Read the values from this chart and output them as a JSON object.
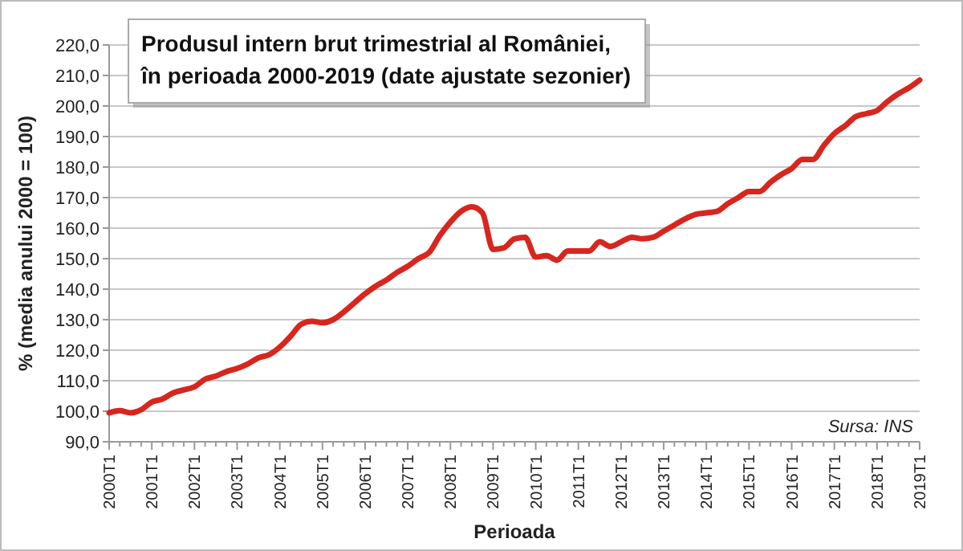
{
  "chart_data": {
    "type": "line",
    "title": "Produsul intern brut trimestrial al României,\nîn perioada 2000-2019 (date ajustate sezonier)",
    "xlabel": "Perioada",
    "ylabel": "% (media anului 2000 = 100)",
    "annotations": [
      "Sursa: INS"
    ],
    "categories": [
      "2000T1",
      null,
      null,
      null,
      "2001T1",
      null,
      null,
      null,
      "2002T1",
      null,
      null,
      null,
      "2003T1",
      null,
      null,
      null,
      "2004T1",
      null,
      null,
      null,
      "2005T1",
      null,
      null,
      null,
      "2006T1",
      null,
      null,
      null,
      "2007T1",
      null,
      null,
      null,
      "2008T1",
      null,
      null,
      null,
      "2009T1",
      null,
      null,
      null,
      "2010T1",
      null,
      null,
      null,
      "2011T1",
      null,
      null,
      null,
      "2012T1",
      null,
      null,
      null,
      "2013T1",
      null,
      null,
      null,
      "2014T1",
      null,
      null,
      null,
      "2015T1",
      null,
      null,
      null,
      "2016T1",
      null,
      null,
      null,
      "2017T1",
      null,
      null,
      null,
      "2018T1",
      null,
      null,
      null,
      "2019T1"
    ],
    "series": [
      {
        "color": "#d7261e",
        "values": [
          99.5,
          100.2,
          99.5,
          100.5,
          103,
          104,
          106,
          107,
          108,
          110.5,
          111.5,
          113,
          114,
          115.5,
          117.5,
          118.5,
          121,
          124.5,
          128.5,
          129.5,
          129,
          130,
          132.5,
          135.5,
          138.5,
          141,
          143,
          145.5,
          147.5,
          150,
          152,
          157.5,
          162,
          165.5,
          167,
          165,
          153,
          153.5,
          156.5,
          157,
          150.5,
          151,
          149.5,
          152.5,
          152.5,
          152.5,
          155.5,
          154,
          155.5,
          157,
          156.5,
          157,
          159,
          161,
          163,
          164.5,
          165,
          165.5,
          168,
          170,
          172,
          172,
          175,
          177.5,
          179.5,
          182.5,
          182.5,
          187,
          191,
          193.5,
          196.5,
          197.5,
          198.5,
          201.5,
          204,
          206,
          208.5
        ]
      }
    ],
    "ylim": [
      90,
      220
    ],
    "yticks": [
      {
        "value": 90,
        "label": "90,0"
      },
      {
        "value": 100,
        "label": "100,0"
      },
      {
        "value": 110,
        "label": "110,0"
      },
      {
        "value": 120,
        "label": "120,0"
      },
      {
        "value": 130,
        "label": "130,0"
      },
      {
        "value": 140,
        "label": "140,0"
      },
      {
        "value": 150,
        "label": "150,0"
      },
      {
        "value": 160,
        "label": "160,0"
      },
      {
        "value": 170,
        "label": "170,0"
      },
      {
        "value": 180,
        "label": "180,0"
      },
      {
        "value": 190,
        "label": "190,0"
      },
      {
        "value": 200,
        "label": "200,0"
      },
      {
        "value": 210,
        "label": "210,0"
      },
      {
        "value": 220,
        "label": "220,0"
      }
    ],
    "grid": "y",
    "line_style": "solid",
    "marker": "none"
  }
}
